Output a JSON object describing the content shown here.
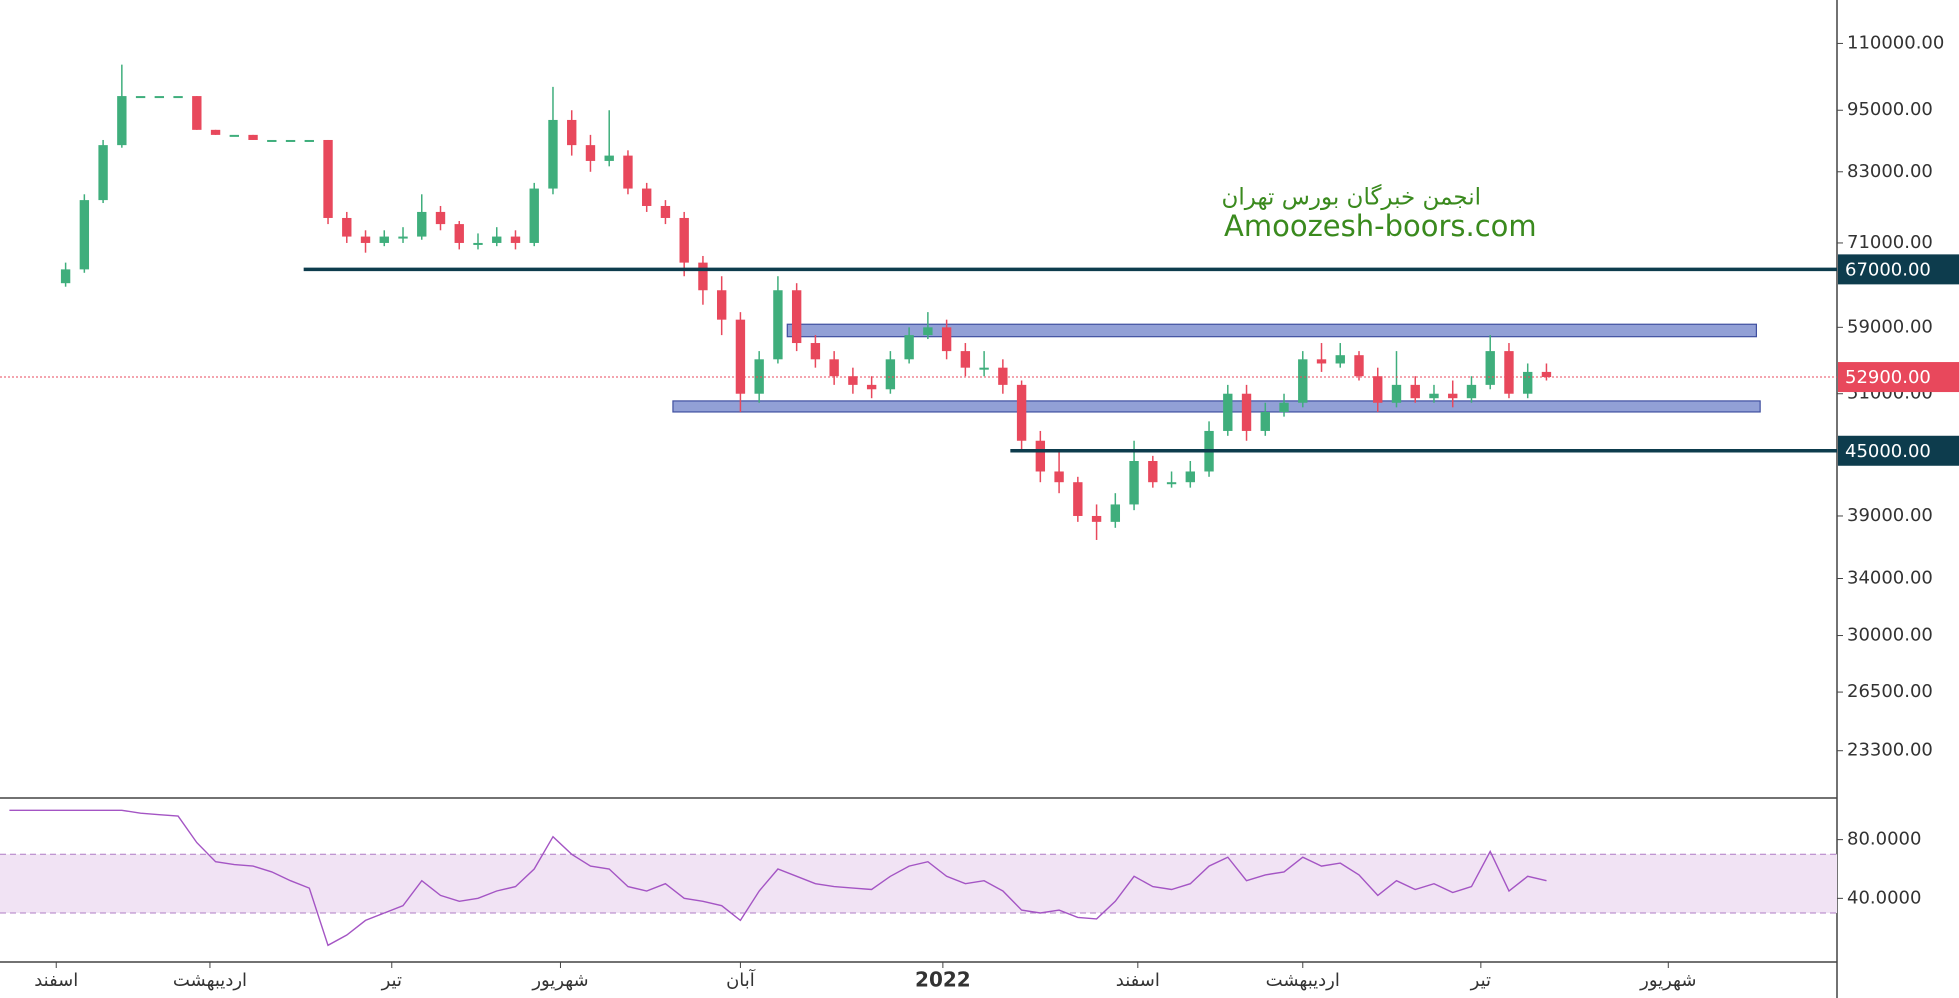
{
  "chart_data": [
    {
      "type": "candlestick",
      "log": true,
      "up_color": "#3fae7c",
      "down_color": "#e8485c",
      "xlim": [
        0,
        98
      ],
      "ylim": [
        21050,
        121000
      ],
      "yticks": [
        {
          "value": 110000,
          "label": "110000.00"
        },
        {
          "value": 95000,
          "label": "95000.00"
        },
        {
          "value": 83000,
          "label": "83000.00"
        },
        {
          "value": 71000,
          "label": "71000.00"
        },
        {
          "value": 59000,
          "label": "59000.00"
        },
        {
          "value": 51000,
          "label": "51000.00"
        },
        {
          "value": 39000,
          "label": "39000.00"
        },
        {
          "value": 34000,
          "label": "34000.00"
        },
        {
          "value": 30000,
          "label": "30000.00"
        },
        {
          "value": 26500,
          "label": "26500.00"
        },
        {
          "value": 23300,
          "label": "23300.00"
        }
      ],
      "watermark": [
        "انجمن خبرگان بورس تهران",
        "Amoozesh-boors.com"
      ],
      "watermark_color": "#3a8a1e",
      "zones": [
        {
          "from": 42,
          "to": 93.7,
          "low": 57800,
          "high": 59400,
          "color": "#7f8fcf"
        },
        {
          "from": 35.9,
          "to": 93.9,
          "low": 49000,
          "high": 50200,
          "color": "#7f8fcf"
        }
      ],
      "hlines": [
        {
          "value": 67000,
          "label": "67000.00",
          "start": 16.2,
          "color": "#0d3c4d"
        },
        {
          "value": 45000,
          "label": "45000.00",
          "start": 53.9,
          "color": "#0d3c4d"
        }
      ],
      "last": {
        "value": 52900,
        "label": "52900.00",
        "color": "#e8485c"
      },
      "values": [
        null,
        null,
        null,
        [
          65000,
          68000,
          64500,
          67000
        ],
        [
          67000,
          79000,
          66500,
          78000
        ],
        [
          78000,
          89000,
          77500,
          88000
        ],
        [
          88000,
          105000,
          87500,
          98000
        ],
        [
          98000,
          98000,
          98000,
          98000
        ],
        [
          98000,
          98000,
          98000,
          98000
        ],
        [
          98000,
          98000,
          98000,
          98000
        ],
        [
          98000,
          98000,
          91000,
          91000
        ],
        [
          91000,
          91000,
          90000,
          90000
        ],
        [
          90000,
          90000,
          90000,
          90000
        ],
        [
          90000,
          90000,
          89000,
          89000
        ],
        [
          89000,
          89000,
          89000,
          89000
        ],
        [
          89000,
          89000,
          89000,
          89000
        ],
        [
          89000,
          89000,
          89000,
          89000
        ],
        [
          89000,
          89000,
          74000,
          75000
        ],
        [
          75000,
          76000,
          71000,
          72000
        ],
        [
          72000,
          73000,
          69500,
          71000
        ],
        [
          71000,
          73000,
          70500,
          72000
        ],
        [
          72000,
          73500,
          71000,
          72000
        ],
        [
          72000,
          79000,
          71500,
          76000
        ],
        [
          76000,
          77000,
          73000,
          74000
        ],
        [
          74000,
          74500,
          70000,
          71000
        ],
        [
          71000,
          72500,
          70000,
          71000
        ],
        [
          71000,
          73500,
          70500,
          72000
        ],
        [
          72000,
          73000,
          70000,
          71000
        ],
        [
          71000,
          81000,
          70500,
          80000
        ],
        [
          80000,
          100000,
          79000,
          93000
        ],
        [
          93000,
          95000,
          86000,
          88000
        ],
        [
          88000,
          90000,
          83000,
          85000
        ],
        [
          85000,
          95000,
          84000,
          86000
        ],
        [
          86000,
          87000,
          79000,
          80000
        ],
        [
          80000,
          81000,
          76000,
          77000
        ],
        [
          77000,
          78000,
          74000,
          75000
        ],
        [
          75000,
          76000,
          66000,
          68000
        ],
        [
          68000,
          69000,
          62000,
          64000
        ],
        [
          64000,
          66000,
          58000,
          60000
        ],
        [
          60000,
          61000,
          49000,
          51000
        ],
        [
          51000,
          56000,
          50000,
          55000
        ],
        [
          55000,
          66000,
          54500,
          64000
        ],
        [
          64000,
          65000,
          56000,
          57000
        ],
        [
          57000,
          58000,
          54000,
          55000
        ],
        [
          55000,
          56000,
          52000,
          53000
        ],
        [
          53000,
          54000,
          51000,
          52000
        ],
        [
          52000,
          53000,
          50500,
          51500
        ],
        [
          51500,
          56000,
          51000,
          55000
        ],
        [
          55000,
          59000,
          54500,
          58000
        ],
        [
          58000,
          61000,
          57500,
          59000
        ],
        [
          59000,
          60000,
          55000,
          56000
        ],
        [
          56000,
          57000,
          53000,
          54000
        ],
        [
          54000,
          56000,
          53000,
          54000
        ],
        [
          54000,
          55000,
          51000,
          52000
        ],
        [
          52000,
          52500,
          45000,
          46000
        ],
        [
          46000,
          47000,
          42000,
          43000
        ],
        [
          43000,
          45000,
          41000,
          42000
        ],
        [
          42000,
          42500,
          38500,
          39000
        ],
        [
          39000,
          40000,
          37000,
          38500
        ],
        [
          38500,
          41000,
          38000,
          40000
        ],
        [
          40000,
          46000,
          39500,
          44000
        ],
        [
          44000,
          44500,
          41500,
          42000
        ],
        [
          42000,
          43000,
          41500,
          42000
        ],
        [
          42000,
          44000,
          41500,
          43000
        ],
        [
          43000,
          48000,
          42500,
          47000
        ],
        [
          47000,
          52000,
          46500,
          51000
        ],
        [
          51000,
          52000,
          46000,
          47000
        ],
        [
          47000,
          50000,
          46500,
          49000
        ],
        [
          49000,
          51000,
          48500,
          50000
        ],
        [
          50000,
          56000,
          49500,
          55000
        ],
        [
          55000,
          57000,
          53500,
          54500
        ],
        [
          54500,
          57000,
          54000,
          55500
        ],
        [
          55500,
          56000,
          52500,
          53000
        ],
        [
          53000,
          54000,
          49000,
          50000
        ],
        [
          50000,
          56000,
          49500,
          52000
        ],
        [
          52000,
          53000,
          50000,
          50500
        ],
        [
          50500,
          52000,
          50000,
          51000
        ],
        [
          51000,
          52500,
          49500,
          50500
        ],
        [
          50500,
          53000,
          50000,
          52000
        ],
        [
          52000,
          58000,
          51500,
          56000
        ],
        [
          56000,
          57000,
          50500,
          51000
        ],
        [
          51000,
          54500,
          50500,
          53500
        ],
        [
          53500,
          54500,
          52500,
          52900
        ]
      ]
    },
    {
      "type": "line",
      "color": "#a455c4",
      "band": [
        30,
        70
      ],
      "band_color": "#f1e3f4",
      "xlim": [
        0,
        98
      ],
      "ylim": [
        -2,
        107
      ],
      "yticks": [
        {
          "value": 80,
          "label": "80.0000"
        },
        {
          "value": 40,
          "label": "40.0000"
        }
      ],
      "xticks": [
        {
          "value": 3,
          "label": "اسفند"
        },
        {
          "value": 11.2,
          "label": "اردیبهشت"
        },
        {
          "value": 20.9,
          "label": "تیر"
        },
        {
          "value": 29.9,
          "label": "شهریور"
        },
        {
          "value": 39.5,
          "label": "آبان"
        },
        {
          "value": 50.3,
          "label": "2022"
        },
        {
          "value": 60.7,
          "label": "اسفند"
        },
        {
          "value": 69.5,
          "label": "اردیبهشت"
        },
        {
          "value": 79,
          "label": "تیر"
        },
        {
          "value": 89,
          "label": "شهریور"
        }
      ],
      "values": [
        100,
        100,
        100,
        100,
        100,
        100,
        100,
        98,
        97,
        96,
        78,
        65,
        63,
        62,
        58,
        52,
        47,
        8,
        15,
        25,
        30,
        35,
        52,
        42,
        38,
        40,
        45,
        48,
        60,
        82,
        70,
        62,
        60,
        48,
        45,
        50,
        40,
        38,
        35,
        25,
        45,
        60,
        55,
        50,
        48,
        47,
        46,
        55,
        62,
        65,
        55,
        50,
        52,
        45,
        32,
        30,
        32,
        27,
        26,
        38,
        55,
        48,
        46,
        50,
        62,
        68,
        52,
        56,
        58,
        68,
        62,
        64,
        56,
        42,
        52,
        46,
        50,
        44,
        48,
        72,
        45,
        55,
        52
      ]
    }
  ]
}
